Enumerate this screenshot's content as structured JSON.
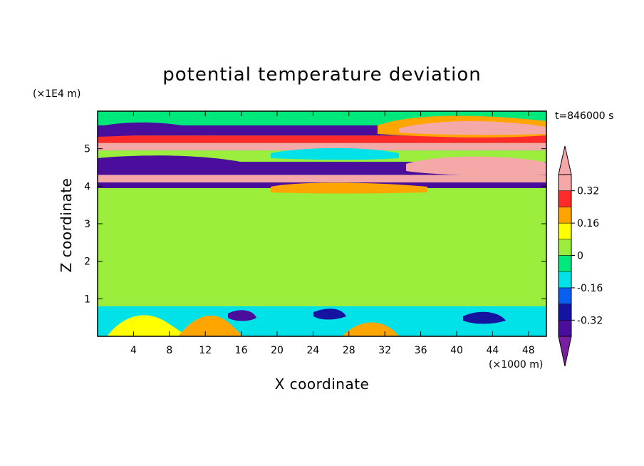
{
  "chart_data": {
    "type": "heatmap",
    "title": "potential temperature deviation",
    "xlabel": "X coordinate",
    "ylabel": "Z coordinate",
    "x_unit": "(×1000 m)",
    "y_unit": "(×1E4 m)",
    "time_label": "t=846000 s",
    "xlim": [
      0,
      50
    ],
    "ylim": [
      0,
      6
    ],
    "x_ticks": [
      4,
      8,
      12,
      16,
      20,
      24,
      28,
      32,
      36,
      40,
      44,
      48
    ],
    "y_ticks": [
      1,
      2,
      3,
      4,
      5
    ],
    "colorbar": {
      "levels": [
        -0.4,
        -0.32,
        -0.24,
        -0.16,
        -0.08,
        0,
        0.08,
        0.16,
        0.24,
        0.32,
        0.4
      ],
      "labels": [
        "0.32",
        "0.16",
        "0",
        "-0.16",
        "-0.32"
      ],
      "label_values": [
        0.32,
        0.16,
        0,
        -0.16,
        -0.32
      ],
      "colors": [
        "#7a1fa2",
        "#4a0d9c",
        "#1414a0",
        "#0a5ff0",
        "#00e2e8",
        "#00e87c",
        "#9bee3c",
        "#ffff00",
        "#ffa500",
        "#ff2a2a",
        "#f5a8a8"
      ],
      "extend": "both"
    },
    "field_bands": [
      {
        "z": [
          5.35,
          5.62
        ],
        "value": -0.36
      },
      {
        "z": [
          5.15,
          5.35
        ],
        "value": 0.24
      },
      {
        "z": [
          4.95,
          5.15
        ],
        "value": 0.4
      },
      {
        "z": [
          4.65,
          4.95
        ],
        "value": 0.02
      },
      {
        "z": [
          4.3,
          4.65
        ],
        "value": -0.36
      },
      {
        "z": [
          4.1,
          4.3
        ],
        "value": 0.4
      },
      {
        "z": [
          3.95,
          4.1
        ],
        "value": -0.4
      },
      {
        "z": [
          0.8,
          3.95
        ],
        "value": 0.03
      },
      {
        "z": [
          0.0,
          0.8
        ],
        "value": -0.1
      }
    ]
  }
}
